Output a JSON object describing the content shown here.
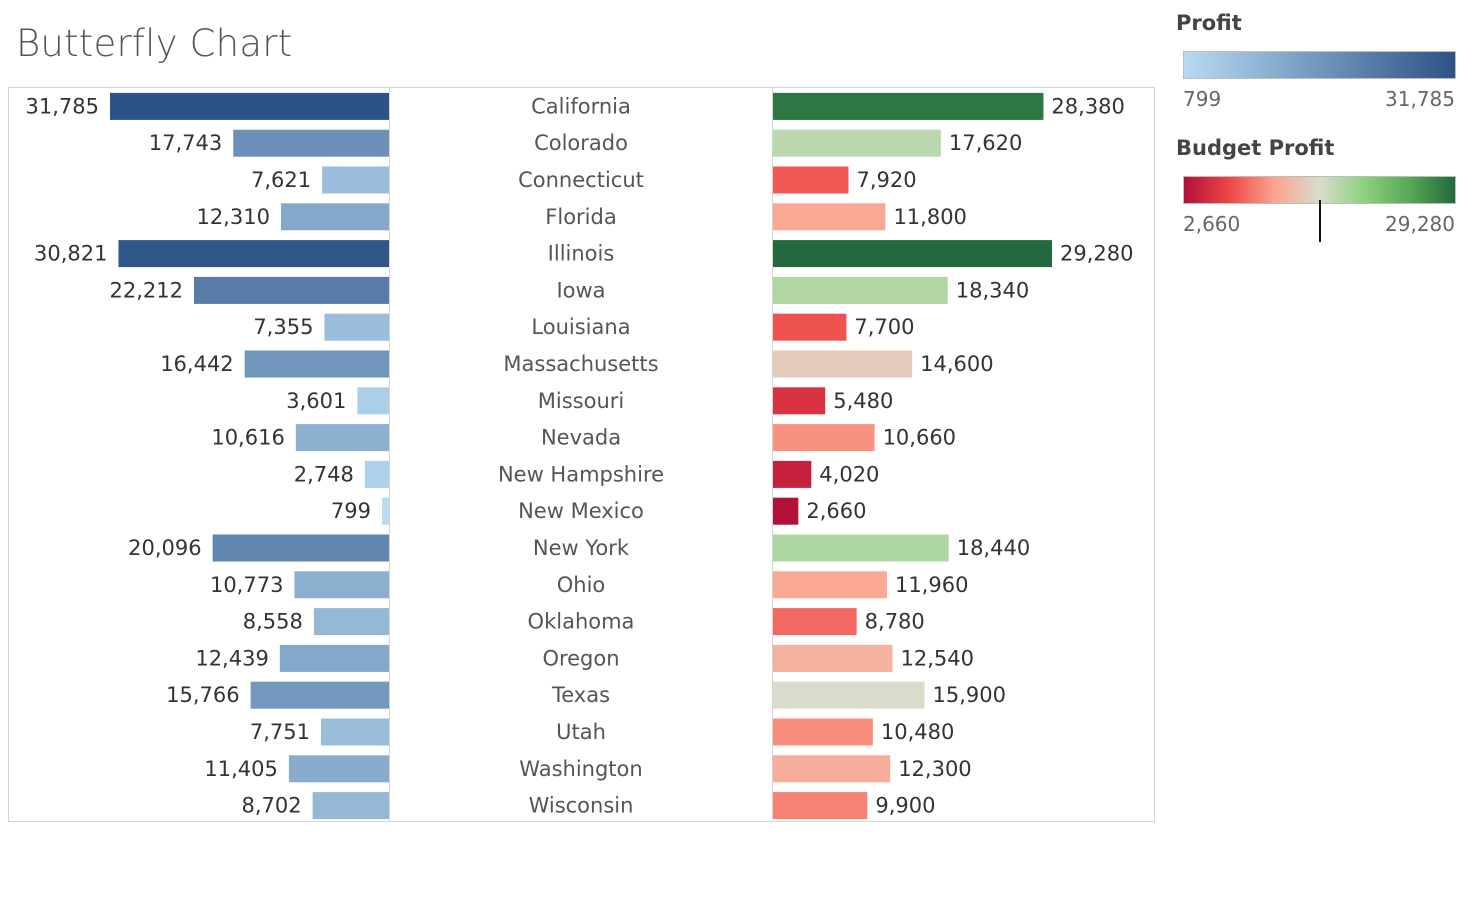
{
  "title": "Butterfly Chart",
  "legend": {
    "profit": {
      "title": "Profit",
      "min_label": "799",
      "max_label": "31,785",
      "colors": [
        "#b7dbf2",
        "#2d5286"
      ]
    },
    "budget": {
      "title": "Budget Profit",
      "min_label": "2,660",
      "max_label": "29,280",
      "colors": [
        "#b31038",
        "#ee4545",
        "#fca48f",
        "#d9dccc",
        "#8cd17d",
        "#57a854",
        "#24693d"
      ]
    }
  },
  "chart_data": {
    "type": "bar",
    "title": "Butterfly Chart",
    "categories": [
      "California",
      "Colorado",
      "Connecticut",
      "Florida",
      "Illinois",
      "Iowa",
      "Louisiana",
      "Massachusetts",
      "Missouri",
      "Nevada",
      "New Hampshire",
      "New Mexico",
      "New York",
      "Ohio",
      "Oklahoma",
      "Oregon",
      "Texas",
      "Utah",
      "Washington",
      "Wisconsin"
    ],
    "series": [
      {
        "name": "Profit",
        "direction": "left",
        "values": [
          31785,
          17743,
          7621,
          12310,
          30821,
          22212,
          7355,
          16442,
          3601,
          10616,
          2748,
          799,
          20096,
          10773,
          8558,
          12439,
          15766,
          7751,
          11405,
          8702
        ],
        "labels": [
          "31,785",
          "17,743",
          "7,621",
          "12,310",
          "30,821",
          "22,212",
          "7,355",
          "16,442",
          "3,601",
          "10,616",
          "2,748",
          "799",
          "20,096",
          "10,773",
          "8,558",
          "12,439",
          "15,766",
          "7,751",
          "11,405",
          "8,702"
        ]
      },
      {
        "name": "Budget Profit",
        "direction": "right",
        "values": [
          28380,
          17620,
          7920,
          11800,
          29280,
          18340,
          7700,
          14600,
          5480,
          10660,
          4020,
          2660,
          18440,
          11960,
          8780,
          12540,
          15900,
          10480,
          12300,
          9900
        ],
        "labels": [
          "28,380",
          "17,620",
          "7,920",
          "11,800",
          "29,280",
          "18,340",
          "7,700",
          "14,600",
          "5,480",
          "10,660",
          "4,020",
          "2,660",
          "18,440",
          "11,960",
          "8,780",
          "12,540",
          "15,900",
          "10,480",
          "12,300",
          "9,900"
        ]
      }
    ]
  }
}
